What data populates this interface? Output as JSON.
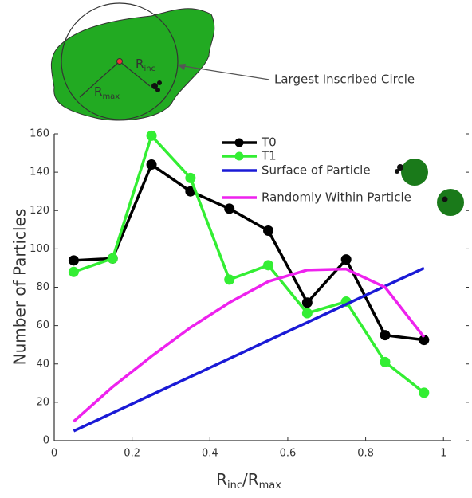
{
  "chart_data": {
    "type": "line",
    "x_label_parts": [
      "R",
      "inc",
      "/R",
      "max"
    ],
    "y_label": "Number of Particles",
    "annotations": {
      "inset_label": "Largest Inscribed Circle",
      "r_inc": [
        "R",
        "inc"
      ],
      "r_max": [
        "R",
        "max"
      ]
    },
    "series": [
      {
        "name": "T0",
        "color": "#000000",
        "marker": true,
        "x": [
          0.05,
          0.15,
          0.25,
          0.35,
          0.45,
          0.55,
          0.65,
          0.75,
          0.85,
          0.95
        ],
        "values": [
          94,
          95,
          144,
          130,
          121,
          109.5,
          72,
          94.5,
          55,
          52.5
        ]
      },
      {
        "name": "T1",
        "color": "#33ee33",
        "marker": true,
        "x": [
          0.05,
          0.15,
          0.25,
          0.35,
          0.45,
          0.55,
          0.65,
          0.75,
          0.85,
          0.95
        ],
        "values": [
          88,
          95,
          159,
          137,
          84,
          91.5,
          66.5,
          72.5,
          41,
          25
        ]
      },
      {
        "name": "Surface of Particle",
        "color": "#1a1ad6",
        "marker": false,
        "x": [
          0.05,
          0.95
        ],
        "values": [
          5,
          90
        ]
      },
      {
        "name": "Randomly Within Particle",
        "color": "#ee22ee",
        "marker": false,
        "x": [
          0.05,
          0.15,
          0.25,
          0.35,
          0.45,
          0.55,
          0.65,
          0.75,
          0.85,
          0.95
        ],
        "values": [
          10,
          28,
          44,
          59,
          72,
          83,
          89,
          89.5,
          80,
          54
        ]
      }
    ],
    "xlim": [
      0,
      1.02
    ],
    "xticks": [
      0,
      0.2,
      0.4,
      0.6,
      0.8,
      1
    ],
    "ylim": [
      0,
      160
    ],
    "yticks": [
      0,
      20,
      40,
      60,
      80,
      100,
      120,
      140,
      160
    ]
  }
}
